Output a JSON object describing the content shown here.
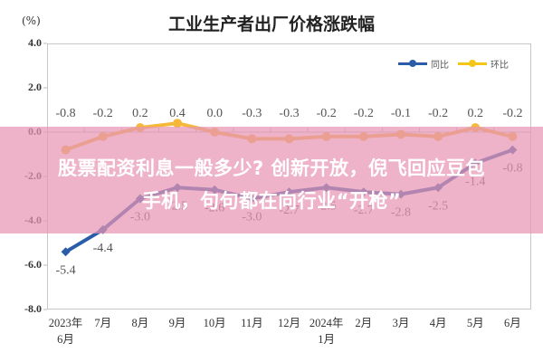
{
  "header": {
    "unit": "(%)",
    "title": "工业生产者出厂价格涨跌幅"
  },
  "legend": {
    "items": [
      {
        "label": "同比",
        "color": "#2a5caa"
      },
      {
        "label": "环比",
        "color": "#f5c518"
      }
    ]
  },
  "overlay": {
    "line1": "股票配资利息一般多少? 创新开放，倪飞回应豆包",
    "line2": "手机，句句都在向行业“开枪”",
    "color": "#e796b4"
  },
  "axis": {
    "yticks": [
      "4.0",
      "2.0",
      "0.0",
      "-2.0",
      "-4.0",
      "-6.0",
      "-8.0"
    ],
    "xticks": [
      {
        "l1": "2023年",
        "l2": "6月"
      },
      {
        "l1": "7月",
        "l2": ""
      },
      {
        "l1": "8月",
        "l2": ""
      },
      {
        "l1": "9月",
        "l2": ""
      },
      {
        "l1": "10月",
        "l2": ""
      },
      {
        "l1": "11月",
        "l2": ""
      },
      {
        "l1": "12月",
        "l2": ""
      },
      {
        "l1": "2024年",
        "l2": "1月"
      },
      {
        "l1": "2月",
        "l2": ""
      },
      {
        "l1": "3月",
        "l2": ""
      },
      {
        "l1": "4月",
        "l2": ""
      },
      {
        "l1": "5月",
        "l2": ""
      },
      {
        "l1": "6月",
        "l2": ""
      }
    ]
  },
  "chart_data": {
    "type": "line",
    "title": "工业生产者出厂价格涨跌幅",
    "ylabel": "(%)",
    "xlabel": "",
    "ylim": [
      -8.0,
      4.0
    ],
    "yticks": [
      4.0,
      2.0,
      0.0,
      -2.0,
      -4.0,
      -6.0,
      -8.0
    ],
    "grid": false,
    "legend_position": "top-right",
    "categories": [
      "2023年6月",
      "7月",
      "8月",
      "9月",
      "10月",
      "11月",
      "12月",
      "2024年1月",
      "2月",
      "3月",
      "4月",
      "5月",
      "6月"
    ],
    "series": [
      {
        "name": "同比",
        "color": "#2a5caa",
        "values": [
          -5.4,
          -4.4,
          -3.0,
          -2.5,
          -2.6,
          -3.0,
          -2.7,
          -2.5,
          -2.7,
          -2.8,
          -2.5,
          -1.4,
          -0.8
        ]
      },
      {
        "name": "环比",
        "color": "#f5c518",
        "values": [
          -0.8,
          -0.2,
          0.2,
          0.4,
          0.0,
          -0.3,
          -0.3,
          -0.2,
          -0.2,
          -0.1,
          -0.2,
          0.2,
          -0.2
        ]
      }
    ]
  }
}
